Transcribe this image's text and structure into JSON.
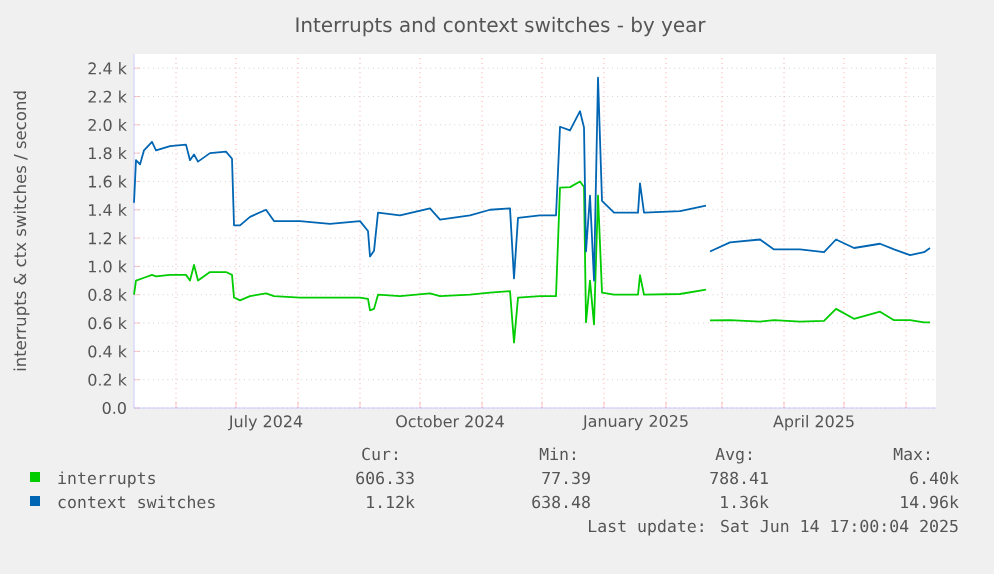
{
  "chart_data": {
    "type": "line",
    "title": "Interrupts and context switches - by year",
    "ylabel": "interrupts & ctx switches / second",
    "x": [
      "2024-05-11",
      "2024-05-12",
      "2024-05-14",
      "2024-05-16",
      "2024-05-20",
      "2024-05-22",
      "2024-05-29",
      "2024-06-06",
      "2024-06-08",
      "2024-06-10",
      "2024-06-12",
      "2024-06-18",
      "2024-06-26",
      "2024-06-29",
      "2024-06-30",
      "2024-07-03",
      "2024-07-08",
      "2024-07-16",
      "2024-07-20",
      "2024-08-02",
      "2024-08-17",
      "2024-09-01",
      "2024-09-05",
      "2024-09-06",
      "2024-09-08",
      "2024-09-10",
      "2024-09-21",
      "2024-10-06",
      "2024-10-11",
      "2024-10-26",
      "2024-11-05",
      "2024-11-15",
      "2024-11-17",
      "2024-11-19",
      "2024-11-30",
      "2024-12-08",
      "2024-12-10",
      "2024-12-15",
      "2024-12-20",
      "2024-12-22",
      "2024-12-23",
      "2024-12-25",
      "2024-12-27",
      "2024-12-29",
      "2024-12-31",
      "2025-01-06",
      "2025-01-18",
      "2025-01-19",
      "2025-01-21",
      "2025-02-08",
      "2025-02-21",
      "2025-02-22",
      "2025-02-23",
      "2025-03-05",
      "2025-03-20",
      "2025-03-27",
      "2025-04-09",
      "2025-04-21",
      "2025-04-27",
      "2025-05-06",
      "2025-05-19",
      "2025-05-26",
      "2025-06-03",
      "2025-06-10",
      "2025-06-13"
    ],
    "series": [
      {
        "name": "interrupts",
        "color": "#00cc00",
        "values": [
          800,
          900,
          910,
          920,
          940,
          930,
          940,
          940,
          900,
          1010,
          900,
          960,
          960,
          940,
          780,
          760,
          790,
          810,
          790,
          780,
          780,
          780,
          770,
          690,
          700,
          800,
          790,
          810,
          790,
          800,
          815,
          825,
          462,
          780,
          790,
          790,
          1557,
          1560,
          1600,
          1560,
          605,
          900,
          590,
          1500,
          814,
          800,
          800,
          938,
          800,
          805,
          836,
          null,
          619,
          620,
          610,
          620,
          610,
          615,
          700,
          630,
          680,
          620,
          620,
          605,
          605
        ]
      },
      {
        "name": "context switches",
        "color": "#0066b3",
        "values": [
          1450,
          1750,
          1720,
          1820,
          1880,
          1820,
          1850,
          1860,
          1750,
          1790,
          1740,
          1800,
          1810,
          1760,
          1290,
          1290,
          1350,
          1400,
          1320,
          1320,
          1300,
          1320,
          1250,
          1070,
          1110,
          1380,
          1360,
          1410,
          1330,
          1360,
          1400,
          1410,
          915,
          1343,
          1360,
          1360,
          1986,
          1960,
          2096,
          1980,
          1105,
          1500,
          900,
          2333,
          1462,
          1380,
          1380,
          1586,
          1380,
          1390,
          1430,
          null,
          1105,
          1170,
          1190,
          1120,
          1120,
          1100,
          1190,
          1130,
          1160,
          1120,
          1080,
          1100,
          1130
        ]
      }
    ],
    "xlim": [
      "2024-05-11",
      "2025-06-16"
    ],
    "xticks": [
      {
        "value": "2024-06-01",
        "label": null
      },
      {
        "value": "2024-07-01",
        "label": null
      },
      {
        "value": "2024-08-01",
        "label": null
      },
      {
        "value": "2024-09-01",
        "label": null
      },
      {
        "value": "2024-10-01",
        "label": null
      },
      {
        "value": "2024-11-01",
        "label": null
      },
      {
        "value": "2024-12-01",
        "label": null
      },
      {
        "value": "2025-01-01",
        "label": null
      },
      {
        "value": "2025-02-01",
        "label": null
      },
      {
        "value": "2025-03-01",
        "label": null
      },
      {
        "value": "2025-04-01",
        "label": null
      },
      {
        "value": "2025-05-01",
        "label": null
      },
      {
        "value": "2025-06-01",
        "label": null
      },
      {
        "value": "2024-07-16",
        "label": "July 2024"
      },
      {
        "value": "2024-10-16",
        "label": "October 2024"
      },
      {
        "value": "2025-01-17",
        "label": "January 2025"
      },
      {
        "value": "2025-04-16",
        "label": "April 2025"
      }
    ],
    "ylim": [
      0,
      2500
    ],
    "yticks": [
      {
        "value": 0,
        "label": "0.0"
      },
      {
        "value": 200,
        "label": "0.2 k"
      },
      {
        "value": 400,
        "label": "0.4 k"
      },
      {
        "value": 600,
        "label": "0.6 k"
      },
      {
        "value": 800,
        "label": "0.8 k"
      },
      {
        "value": 1000,
        "label": "1.0 k"
      },
      {
        "value": 1200,
        "label": "1.2 k"
      },
      {
        "value": 1400,
        "label": "1.4 k"
      },
      {
        "value": 1600,
        "label": "1.6 k"
      },
      {
        "value": 1800,
        "label": "1.8 k"
      },
      {
        "value": 2000,
        "label": "2.0 k"
      },
      {
        "value": 2200,
        "label": "2.2 k"
      },
      {
        "value": 2400,
        "label": "2.4 k"
      }
    ],
    "grid": true,
    "legend": "bottom",
    "marker": "none",
    "line_style": "solid",
    "annotations": [
      "Cur:",
      "Min:",
      "Avg:",
      "Max:",
      "606.33",
      "77.39",
      "788.41",
      "6.40k",
      "1.12k",
      "638.48",
      "1.36k",
      "14.96k",
      "Last update: Sat Jun 14 17:00:04 2025"
    ]
  }
}
